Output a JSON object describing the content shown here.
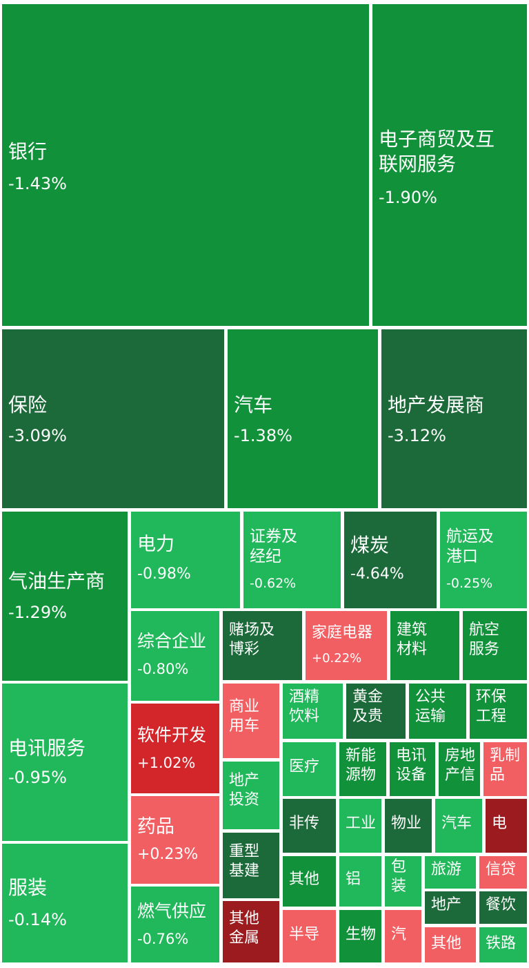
{
  "chart_data": {
    "type": "treemap",
    "colors": {
      "dark_green": "#1c6a3a",
      "green": "#11923a",
      "light_green": "#20b85a",
      "light_red": "#f25f63",
      "red": "#d3262b",
      "dark_red": "#9b1b1e"
    },
    "cells": [
      {
        "label": "银行",
        "change": "-1.43%",
        "value": -1.43,
        "color": "green"
      },
      {
        "label": "电子商贸及互\n联网服务",
        "change": "-1.90%",
        "value": -1.9,
        "color": "green"
      },
      {
        "label": "保险",
        "change": "-3.09%",
        "value": -3.09,
        "color": "dark_green"
      },
      {
        "label": "汽车",
        "change": "-1.38%",
        "value": -1.38,
        "color": "green"
      },
      {
        "label": "地产发展商",
        "change": "-3.12%",
        "value": -3.12,
        "color": "dark_green"
      },
      {
        "label": "气油生产商",
        "change": "-1.29%",
        "value": -1.29,
        "color": "green"
      },
      {
        "label": "电讯服务",
        "change": "-0.95%",
        "value": -0.95,
        "color": "light_green"
      },
      {
        "label": "服装",
        "change": "-0.14%",
        "value": -0.14,
        "color": "light_green"
      },
      {
        "label": "电力",
        "change": "-0.98%",
        "value": -0.98,
        "color": "light_green"
      },
      {
        "label": "证券及\n经纪",
        "change": "-0.62%",
        "value": -0.62,
        "color": "light_green"
      },
      {
        "label": "煤炭",
        "change": "-4.64%",
        "value": -4.64,
        "color": "dark_green"
      },
      {
        "label": "航运及\n港口",
        "change": "-0.25%",
        "value": -0.25,
        "color": "light_green"
      },
      {
        "label": "综合企业",
        "change": "-0.80%",
        "value": -0.8,
        "color": "light_green"
      },
      {
        "label": "软件开发",
        "change": "+1.02%",
        "value": 1.02,
        "color": "red"
      },
      {
        "label": "药品",
        "change": "+0.23%",
        "value": 0.23,
        "color": "light_red"
      },
      {
        "label": "燃气供应",
        "change": "-0.76%",
        "value": -0.76,
        "color": "light_green"
      },
      {
        "label": "赌场及\n博彩",
        "change": "",
        "color": "dark_green"
      },
      {
        "label": "家庭电器",
        "change": "+0.22%",
        "value": 0.22,
        "color": "light_red"
      },
      {
        "label": "建筑\n材料",
        "change": "",
        "color": "green"
      },
      {
        "label": "航空\n服务",
        "change": "",
        "color": "green"
      },
      {
        "label": "商业\n用车",
        "change": "",
        "color": "light_red"
      },
      {
        "label": "酒精\n饮料",
        "change": "",
        "color": "light_green"
      },
      {
        "label": "黄金\n及贵",
        "change": "",
        "color": "dark_green"
      },
      {
        "label": "公共\n运输",
        "change": "",
        "color": "green"
      },
      {
        "label": "环保\n工程",
        "change": "",
        "color": "green"
      },
      {
        "label": "地产\n投资",
        "change": "",
        "color": "light_green"
      },
      {
        "label": "医疗",
        "change": "",
        "color": "light_green"
      },
      {
        "label": "新能\n源物",
        "change": "",
        "color": "green"
      },
      {
        "label": "电讯\n设备",
        "change": "",
        "color": "green"
      },
      {
        "label": "房地\n产信",
        "change": "",
        "color": "green"
      },
      {
        "label": "乳制\n品",
        "change": "",
        "color": "light_red"
      },
      {
        "label": "非传",
        "change": "",
        "color": "dark_green"
      },
      {
        "label": "工业",
        "change": "",
        "color": "light_green"
      },
      {
        "label": "物业",
        "change": "",
        "color": "dark_green"
      },
      {
        "label": "汽车",
        "change": "",
        "color": "light_green"
      },
      {
        "label": "电",
        "change": "",
        "color": "dark_red"
      },
      {
        "label": "重型\n基建",
        "change": "",
        "color": "dark_green"
      },
      {
        "label": "其他",
        "change": "",
        "color": "green"
      },
      {
        "label": "铝",
        "change": "",
        "color": "light_green"
      },
      {
        "label": "包\n装",
        "change": "",
        "color": "light_green"
      },
      {
        "label": "旅游",
        "change": "",
        "color": "light_green"
      },
      {
        "label": "信贷",
        "change": "",
        "color": "light_red"
      },
      {
        "label": "地产",
        "change": "",
        "color": "dark_green"
      },
      {
        "label": "餐饮",
        "change": "",
        "color": "dark_green"
      },
      {
        "label": "其他\n金属",
        "change": "",
        "color": "dark_red"
      },
      {
        "label": "半导",
        "change": "",
        "color": "light_red"
      },
      {
        "label": "生物",
        "change": "",
        "color": "green"
      },
      {
        "label": "汽",
        "change": "",
        "color": "light_red"
      },
      {
        "label": "其他",
        "change": "",
        "color": "light_red"
      },
      {
        "label": "铁路",
        "change": "",
        "color": "light_green"
      }
    ]
  }
}
